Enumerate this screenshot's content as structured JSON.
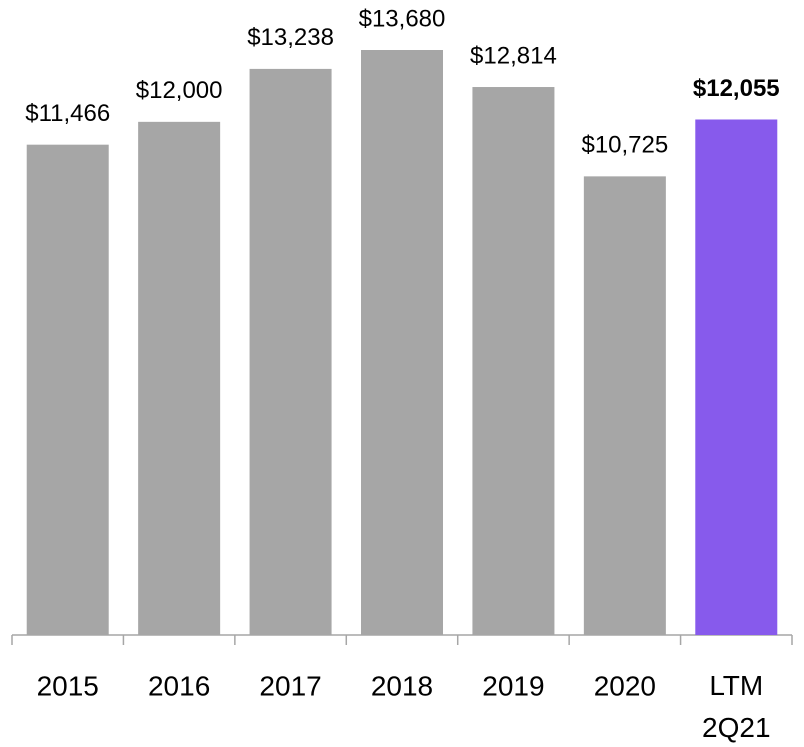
{
  "chart_data": {
    "type": "bar",
    "categories": [
      "2015",
      "2016",
      "2017",
      "2018",
      "2019",
      "2020",
      "LTM 2Q21"
    ],
    "values": [
      11466,
      12000,
      13238,
      13680,
      12814,
      10725,
      12055
    ],
    "value_labels": [
      "$11,466",
      "$12,000",
      "$13,238",
      "$13,680",
      "$12,814",
      "$10,725",
      "$12,055"
    ],
    "colors": [
      "#a6a6a6",
      "#a6a6a6",
      "#a6a6a6",
      "#a6a6a6",
      "#a6a6a6",
      "#a6a6a6",
      "#875aec"
    ]
  }
}
